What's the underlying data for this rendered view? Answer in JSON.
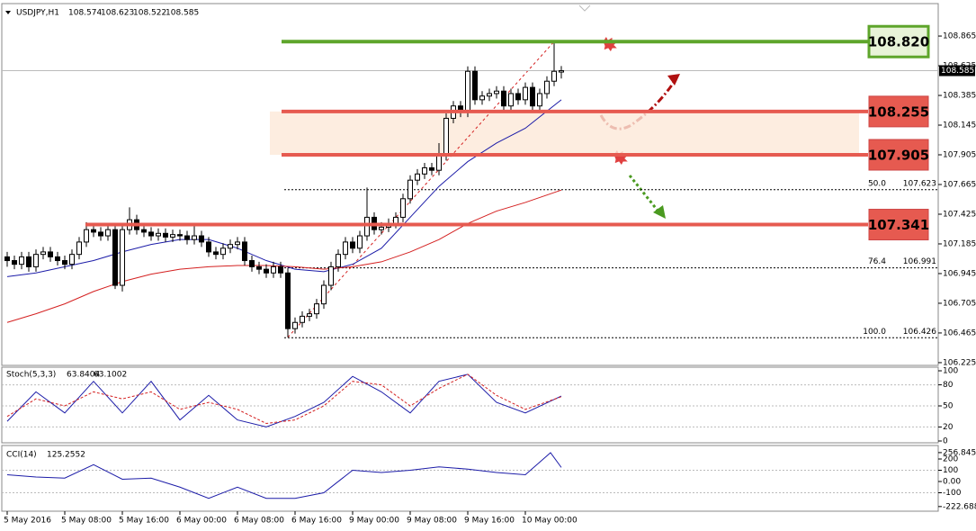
{
  "chart_data": {
    "type": "candlestick",
    "symbol": "USDJPY,H1",
    "ylim": [
      106.21,
      109.12
    ],
    "yticks": [
      108.865,
      108.625,
      108.385,
      108.145,
      107.905,
      107.665,
      107.425,
      107.185,
      106.945,
      106.705,
      106.465,
      106.225
    ],
    "time_labels": [
      {
        "index": 0,
        "label": "5 May 2016"
      },
      {
        "index": 8,
        "label": "5 May 08:00"
      },
      {
        "index": 16,
        "label": "5 May 16:00"
      },
      {
        "index": 24,
        "label": "6 May 00:00"
      },
      {
        "index": 32,
        "label": "6 May 08:00"
      },
      {
        "index": 40,
        "label": "6 May 16:00"
      },
      {
        "index": 48,
        "label": "9 May 00:00"
      },
      {
        "index": 56,
        "label": "9 May 08:00"
      },
      {
        "index": 64,
        "label": "9 May 16:00"
      },
      {
        "index": 72,
        "label": "10 May 00:00"
      }
    ],
    "ohlc": [
      [
        107.08,
        107.12,
        107.0,
        107.05
      ],
      [
        107.05,
        107.09,
        106.98,
        107.02
      ],
      [
        107.02,
        107.12,
        106.98,
        107.08
      ],
      [
        107.08,
        107.12,
        106.96,
        107.0
      ],
      [
        107.0,
        107.14,
        106.96,
        107.1
      ],
      [
        107.1,
        107.16,
        107.06,
        107.12
      ],
      [
        107.12,
        107.16,
        107.04,
        107.08
      ],
      [
        107.08,
        107.12,
        107.01,
        107.05
      ],
      [
        107.05,
        107.09,
        106.98,
        107.02
      ],
      [
        107.02,
        107.14,
        106.98,
        107.1
      ],
      [
        107.1,
        107.24,
        107.06,
        107.2
      ],
      [
        107.2,
        107.36,
        107.16,
        107.3
      ],
      [
        107.3,
        107.34,
        107.24,
        107.28
      ],
      [
        107.28,
        107.32,
        107.21,
        107.25
      ],
      [
        107.25,
        107.34,
        107.21,
        107.3
      ],
      [
        107.3,
        107.34,
        106.82,
        106.85
      ],
      [
        106.85,
        107.34,
        106.8,
        107.3
      ],
      [
        107.3,
        107.48,
        107.26,
        107.38
      ],
      [
        107.38,
        107.42,
        107.26,
        107.3
      ],
      [
        107.3,
        107.34,
        107.24,
        107.28
      ],
      [
        107.28,
        107.32,
        107.21,
        107.25
      ],
      [
        107.25,
        107.31,
        107.21,
        107.27
      ],
      [
        107.27,
        107.31,
        107.2,
        107.24
      ],
      [
        107.24,
        107.3,
        107.2,
        107.26
      ],
      [
        107.26,
        107.3,
        107.21,
        107.25
      ],
      [
        107.25,
        107.29,
        107.18,
        107.22
      ],
      [
        107.22,
        107.34,
        107.18,
        107.25
      ],
      [
        107.25,
        107.29,
        107.16,
        107.2
      ],
      [
        107.2,
        107.24,
        107.08,
        107.12
      ],
      [
        107.12,
        107.16,
        107.06,
        107.1
      ],
      [
        107.1,
        107.19,
        107.06,
        107.15
      ],
      [
        107.15,
        107.22,
        107.11,
        107.18
      ],
      [
        107.18,
        107.24,
        107.14,
        107.2
      ],
      [
        107.2,
        107.24,
        107.01,
        107.05
      ],
      [
        107.05,
        107.09,
        106.96,
        107.0
      ],
      [
        107.0,
        107.04,
        106.94,
        106.98
      ],
      [
        106.98,
        107.02,
        106.91,
        106.95
      ],
      [
        106.95,
        107.04,
        106.91,
        107.0
      ],
      [
        107.0,
        107.04,
        106.91,
        106.95
      ],
      [
        106.95,
        106.99,
        106.43,
        106.5
      ],
      [
        106.5,
        106.59,
        106.46,
        106.55
      ],
      [
        106.55,
        106.64,
        106.51,
        106.6
      ],
      [
        106.6,
        106.66,
        106.56,
        106.62
      ],
      [
        106.62,
        106.74,
        106.58,
        106.7
      ],
      [
        106.7,
        106.89,
        106.66,
        106.85
      ],
      [
        106.85,
        107.04,
        106.81,
        107.0
      ],
      [
        107.0,
        107.14,
        106.96,
        107.1
      ],
      [
        107.1,
        107.24,
        107.06,
        107.2
      ],
      [
        107.2,
        107.24,
        107.11,
        107.15
      ],
      [
        107.15,
        107.29,
        107.11,
        107.25
      ],
      [
        107.25,
        107.64,
        107.21,
        107.4
      ],
      [
        107.4,
        107.44,
        107.26,
        107.3
      ],
      [
        107.3,
        107.36,
        107.26,
        107.32
      ],
      [
        107.32,
        107.39,
        107.28,
        107.35
      ],
      [
        107.35,
        107.44,
        107.31,
        107.4
      ],
      [
        107.4,
        107.59,
        107.36,
        107.55
      ],
      [
        107.55,
        107.74,
        107.51,
        107.7
      ],
      [
        107.7,
        107.79,
        107.66,
        107.75
      ],
      [
        107.75,
        107.84,
        107.71,
        107.8
      ],
      [
        107.8,
        107.84,
        107.74,
        107.78
      ],
      [
        107.78,
        108.0,
        107.74,
        107.9
      ],
      [
        107.9,
        108.24,
        107.86,
        108.2
      ],
      [
        108.2,
        108.34,
        108.16,
        108.3
      ],
      [
        108.3,
        108.34,
        108.21,
        108.25
      ],
      [
        108.25,
        108.62,
        108.21,
        108.58
      ],
      [
        108.58,
        108.62,
        108.31,
        108.35
      ],
      [
        108.35,
        108.42,
        108.31,
        108.38
      ],
      [
        108.38,
        108.44,
        108.34,
        108.4
      ],
      [
        108.4,
        108.46,
        108.36,
        108.42
      ],
      [
        108.42,
        108.46,
        108.26,
        108.3
      ],
      [
        108.3,
        108.44,
        108.26,
        108.4
      ],
      [
        108.4,
        108.44,
        108.31,
        108.35
      ],
      [
        108.35,
        108.49,
        108.31,
        108.45
      ],
      [
        108.45,
        108.49,
        108.26,
        108.3
      ],
      [
        108.3,
        108.44,
        108.26,
        108.4
      ],
      [
        108.4,
        108.54,
        108.36,
        108.5
      ],
      [
        108.5,
        108.82,
        108.46,
        108.58
      ],
      [
        108.574,
        108.623,
        108.522,
        108.585
      ]
    ],
    "moving_averages": [
      {
        "color": "#1c1ca8",
        "x": [
          0,
          4,
          8,
          12,
          16,
          20,
          24,
          28,
          32,
          36,
          40,
          44,
          48,
          52,
          56,
          60,
          64,
          68,
          72,
          77
        ],
        "values": [
          106.92,
          106.95,
          107.0,
          107.05,
          107.12,
          107.18,
          107.22,
          107.22,
          107.15,
          107.05,
          106.98,
          106.96,
          107.02,
          107.15,
          107.4,
          107.65,
          107.85,
          108.0,
          108.12,
          108.35
        ]
      },
      {
        "color": "#d42020",
        "x": [
          0,
          4,
          8,
          12,
          16,
          20,
          24,
          28,
          32,
          36,
          40,
          44,
          48,
          52,
          56,
          60,
          64,
          68,
          72,
          77
        ],
        "values": [
          106.55,
          106.62,
          106.7,
          106.8,
          106.88,
          106.94,
          106.98,
          107.0,
          107.01,
          107.01,
          107.0,
          106.98,
          107.0,
          107.04,
          107.12,
          107.22,
          107.35,
          107.45,
          107.52,
          107.62
        ]
      }
    ],
    "levels": [
      {
        "value": 108.82,
        "label": "108.820",
        "color": "#5ea52b"
      },
      {
        "value": 108.255,
        "label": "108.255",
        "color": "#e65a50"
      },
      {
        "value": 107.905,
        "label": "107.905",
        "color": "#e65a50"
      },
      {
        "value": 107.341,
        "label": "107.341",
        "color": "#e65a50"
      }
    ],
    "fib_levels": [
      {
        "ratio": "50.0",
        "price": 107.623
      },
      {
        "ratio": "76.4",
        "price": 106.991
      },
      {
        "ratio": "100.0",
        "price": 106.426
      }
    ],
    "stoch": {
      "name": "Stoch(5,3,3)",
      "k_last": 63.8404,
      "d_last": 63.1002,
      "ylim": [
        0,
        100
      ],
      "yticks": [
        100,
        80,
        50,
        20,
        0
      ],
      "x": [
        0,
        4,
        8,
        12,
        16,
        20,
        24,
        28,
        32,
        36,
        40,
        44,
        48,
        52,
        56,
        60,
        64,
        68,
        72,
        77
      ],
      "k": [
        28,
        70,
        40,
        85,
        40,
        85,
        30,
        65,
        30,
        20,
        35,
        55,
        92,
        70,
        40,
        85,
        95,
        55,
        40,
        64
      ],
      "d": [
        35,
        60,
        50,
        70,
        60,
        70,
        45,
        55,
        45,
        25,
        30,
        50,
        85,
        80,
        50,
        75,
        95,
        65,
        45,
        63
      ]
    },
    "cci": {
      "name": "CCI(14)",
      "last": 125.2552,
      "ylim": [
        -256,
        304
      ],
      "yticks": [
        256.8453,
        200,
        100,
        {
          "value": 0,
          "label": "0.00"
        },
        -100,
        -222.688
      ],
      "x": [
        0,
        4,
        8,
        12,
        16,
        20,
        24,
        28,
        32,
        36,
        40,
        44,
        48,
        52,
        56,
        60,
        64,
        68,
        72,
        75.5,
        77
      ],
      "values": [
        60,
        40,
        30,
        150,
        20,
        30,
        -50,
        -150,
        -50,
        -150,
        -150,
        -100,
        100,
        80,
        100,
        130,
        110,
        80,
        60,
        256,
        125
      ]
    }
  }
}
